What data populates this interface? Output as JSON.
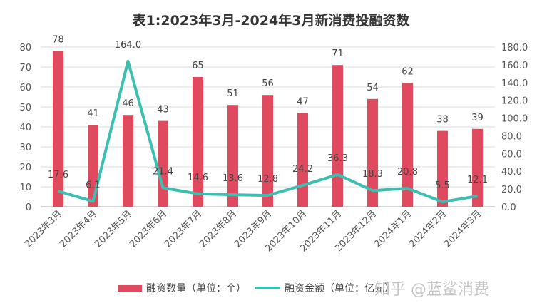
{
  "chart_data": {
    "type": "bar+line",
    "title": "表1:2023年3月-2024年3月新消费投融资数",
    "categories": [
      "2023年3月",
      "2023年4月",
      "2023年5月",
      "2023年6月",
      "2023年7月",
      "2023年8月",
      "2023年9月",
      "2023年10月",
      "2023年11月",
      "2023年12月",
      "2024年1月",
      "2024年2月",
      "2024年3月"
    ],
    "series": [
      {
        "name": "融资数量（单位：个）",
        "type": "bar",
        "axis": "left",
        "color": "#e04a5f",
        "values": [
          78,
          41,
          46,
          43,
          65,
          51,
          56,
          47,
          71,
          54,
          62,
          38,
          39
        ]
      },
      {
        "name": "融资金额（单位：亿元）",
        "type": "line",
        "axis": "right",
        "color": "#3cbfb0",
        "values": [
          17.6,
          6.1,
          164.0,
          21.4,
          14.6,
          13.6,
          12.8,
          24.2,
          36.3,
          18.3,
          20.8,
          5.5,
          12.1
        ]
      }
    ],
    "left_axis": {
      "ylim": [
        0,
        80
      ],
      "ticks": [
        "0",
        "10",
        "20",
        "30",
        "40",
        "50",
        "60",
        "70",
        "80"
      ]
    },
    "right_axis": {
      "ylim": [
        0,
        180
      ],
      "ticks": [
        "0.0",
        "20.0",
        "40.0",
        "60.0",
        "80.0",
        "100.0",
        "120.0",
        "140.0",
        "160.0",
        "180.0"
      ]
    },
    "grid": true,
    "legend": "bottom"
  },
  "watermark": "知乎 @蓝鲨消费"
}
